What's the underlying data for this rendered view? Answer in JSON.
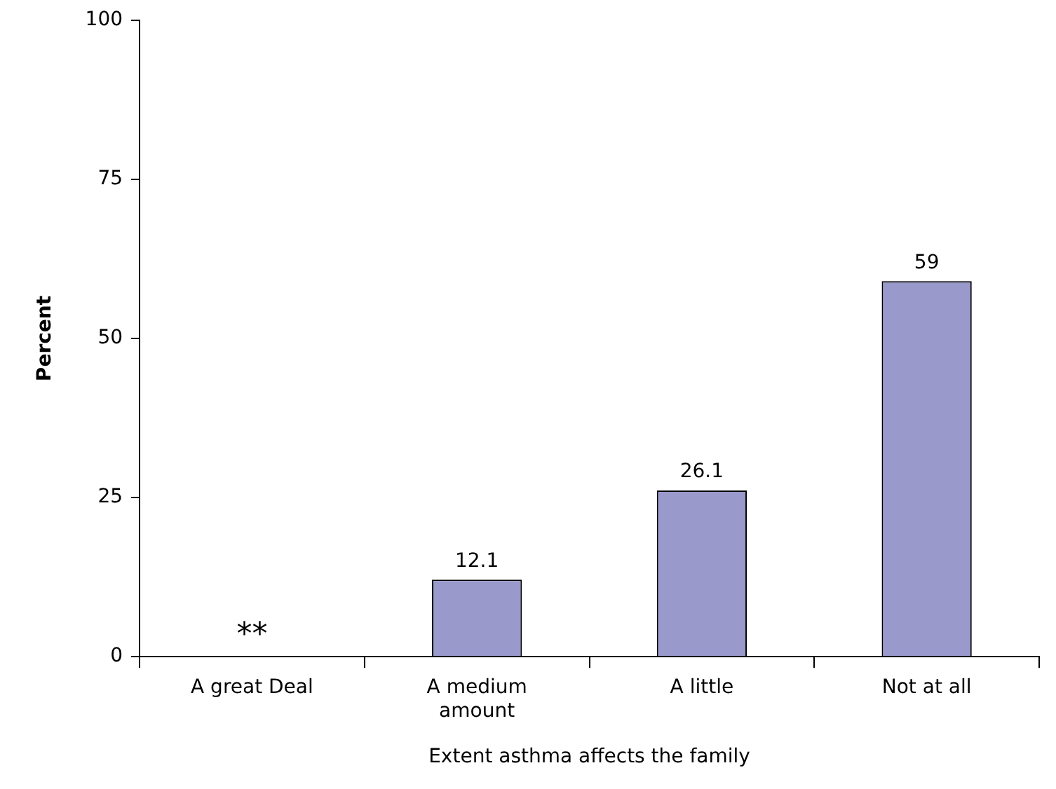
{
  "chart_data": {
    "type": "bar",
    "xlabel": "Extent asthma affects the family",
    "ylabel": "Percent",
    "categories": [
      "A great Deal",
      "A medium amount",
      "A little",
      "Not at all"
    ],
    "values": [
      null,
      12.1,
      26.1,
      59
    ],
    "value_labels": [
      "**",
      "12.1",
      "26.1",
      "59"
    ],
    "color": "#9999cc",
    "ylim": [
      0,
      100
    ],
    "yticks": [
      0,
      25,
      50,
      75,
      100
    ],
    "grid": false,
    "legend": false
  }
}
